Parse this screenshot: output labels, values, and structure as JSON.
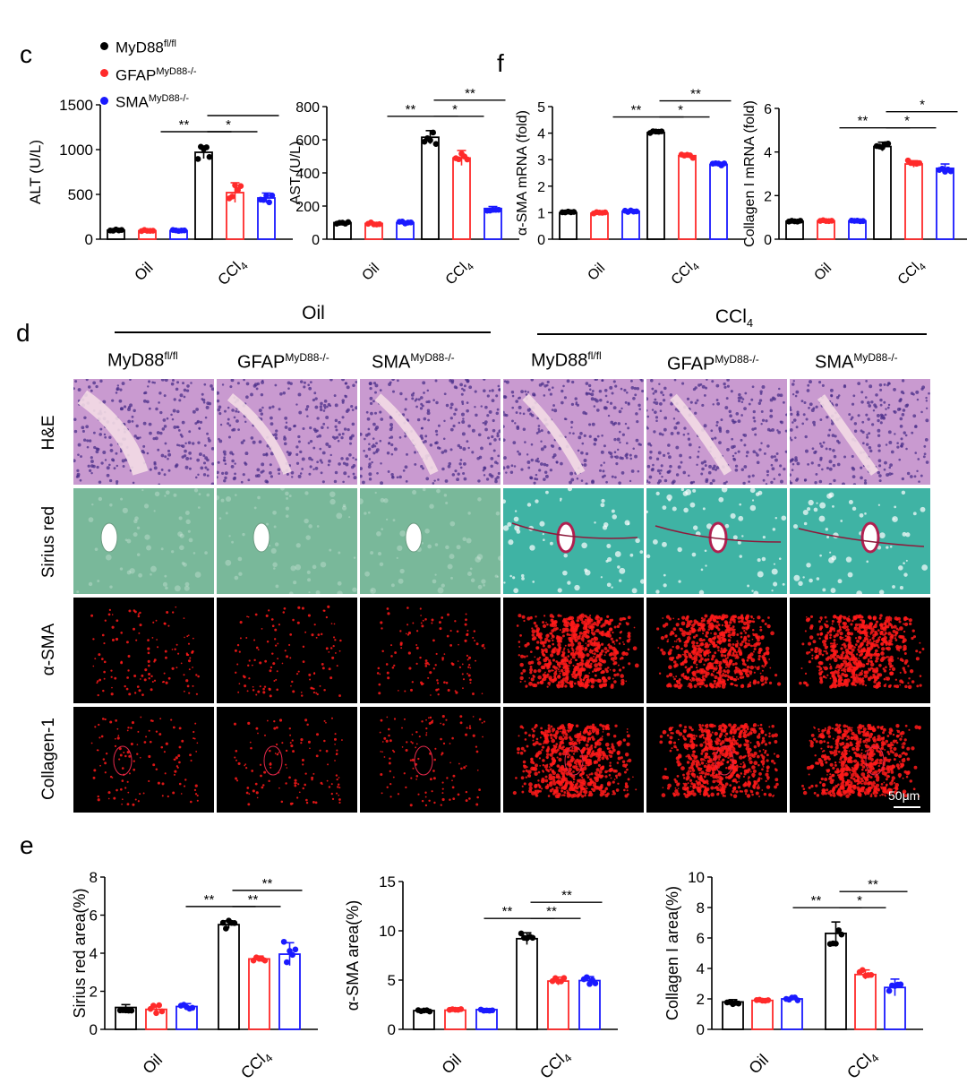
{
  "panels": {
    "c": "c",
    "d": "d",
    "e": "e",
    "f": "f"
  },
  "legend": [
    {
      "base": "MyD88",
      "sup": "fl/fl",
      "color": "#000000"
    },
    {
      "base": "GFAP",
      "sup": "MyD88-/-",
      "color": "#ff0000"
    },
    {
      "base": "SMA",
      "sup": "MyD88-/-",
      "color": "#0000ff"
    }
  ],
  "colors": {
    "wt": "#000000",
    "gfap": "#ff2a2a",
    "sma": "#1a1aff"
  },
  "treatments": {
    "oil": "Oil",
    "ccl4_base": "CCl",
    "ccl4_sub": "4"
  },
  "histology": {
    "group_headers": {
      "oil": "Oil",
      "ccl4_base": "CCl",
      "ccl4_sub": "4"
    },
    "columns": [
      {
        "base": "MyD88",
        "sup": "fl/fl"
      },
      {
        "base": "GFAP",
        "sup": "MyD88-/-"
      },
      {
        "base": "SMA",
        "sup": "MyD88-/-"
      },
      {
        "base": "MyD88",
        "sup": "fl/fl"
      },
      {
        "base": "GFAP",
        "sup": "MyD88-/-"
      },
      {
        "base": "SMA",
        "sup": "MyD88-/-"
      }
    ],
    "rows": [
      "H&E",
      "Sirius red",
      "α-SMA",
      "Collagen-1"
    ],
    "scale_bar": "50μm"
  },
  "chart_data": [
    {
      "id": "alt",
      "type": "bar",
      "ylabel": "ALT (U/L)",
      "ylim": [
        0,
        1500
      ],
      "yticks": [
        0,
        500,
        1000,
        1500
      ],
      "categories": [
        "Oil",
        "CCl4"
      ],
      "series": [
        {
          "group": "MyD88fl/fl",
          "values": [
            100,
            970
          ],
          "sem": [
            8,
            70
          ]
        },
        {
          "group": "GFAPMyD88-/-",
          "values": [
            95,
            520
          ],
          "sem": [
            8,
            110
          ]
        },
        {
          "group": "SMAMyD88-/-",
          "values": [
            95,
            460
          ],
          "sem": [
            8,
            55
          ]
        }
      ],
      "significance": [
        {
          "label": "**",
          "pair": [
            0,
            1
          ]
        },
        {
          "label": "*",
          "pair": [
            1,
            2
          ]
        },
        {
          "label": "",
          "pair": [
            0,
            2
          ]
        }
      ]
    },
    {
      "id": "ast",
      "type": "bar",
      "ylabel": "AST (U/L)",
      "ylim": [
        0,
        800
      ],
      "yticks": [
        0,
        200,
        400,
        600,
        800
      ],
      "categories": [
        "Oil",
        "CCl4"
      ],
      "series": [
        {
          "group": "MyD88fl/fl",
          "values": [
            100,
            615
          ],
          "sem": [
            6,
            40
          ]
        },
        {
          "group": "GFAPMyD88-/-",
          "values": [
            95,
            490
          ],
          "sem": [
            6,
            45
          ]
        },
        {
          "group": "SMAMyD88-/-",
          "values": [
            100,
            185
          ],
          "sem": [
            6,
            12
          ]
        }
      ],
      "significance": [
        {
          "label": "**",
          "pair": [
            0,
            1
          ]
        },
        {
          "label": "*",
          "pair": [
            1,
            2
          ]
        },
        {
          "label": "**",
          "pair": [
            0,
            2
          ]
        }
      ]
    },
    {
      "id": "asma_mrna",
      "type": "bar",
      "ylabel": "α-SMA mRNA (fold)",
      "ylim": [
        0,
        5
      ],
      "yticks": [
        0,
        1,
        2,
        3,
        4,
        5
      ],
      "categories": [
        "Oil",
        "CCl4"
      ],
      "series": [
        {
          "group": "MyD88fl/fl",
          "values": [
            1.0,
            4.02
          ],
          "sem": [
            0.04,
            0.05
          ]
        },
        {
          "group": "GFAPMyD88-/-",
          "values": [
            0.98,
            3.15
          ],
          "sem": [
            0.04,
            0.08
          ]
        },
        {
          "group": "SMAMyD88-/-",
          "values": [
            1.05,
            2.82
          ],
          "sem": [
            0.04,
            0.08
          ]
        }
      ],
      "significance": [
        {
          "label": "**",
          "pair": [
            0,
            1
          ]
        },
        {
          "label": "*",
          "pair": [
            1,
            2
          ]
        },
        {
          "label": "**",
          "pair": [
            0,
            2
          ]
        }
      ]
    },
    {
      "id": "col_mrna",
      "type": "bar",
      "ylabel": "Collagen I mRNA (fold)",
      "ylim": [
        0,
        6
      ],
      "yticks": [
        0,
        2,
        4,
        6
      ],
      "categories": [
        "Oil",
        "CCl4"
      ],
      "series": [
        {
          "group": "MyD88fl/fl",
          "values": [
            0.82,
            4.25
          ],
          "sem": [
            0.03,
            0.2
          ]
        },
        {
          "group": "GFAPMyD88-/-",
          "values": [
            0.84,
            3.45
          ],
          "sem": [
            0.03,
            0.15
          ]
        },
        {
          "group": "SMAMyD88-/-",
          "values": [
            0.84,
            3.25
          ],
          "sem": [
            0.03,
            0.2
          ]
        }
      ],
      "significance": [
        {
          "label": "**",
          "pair": [
            0,
            1
          ]
        },
        {
          "label": "*",
          "pair": [
            1,
            2
          ]
        },
        {
          "label": "*",
          "pair": [
            0,
            2
          ]
        }
      ]
    },
    {
      "id": "sirius_area",
      "type": "bar",
      "ylabel": "Sirius red area(%)",
      "ylim": [
        0,
        8
      ],
      "yticks": [
        0,
        2,
        4,
        6,
        8
      ],
      "categories": [
        "Oil",
        "CCl4"
      ],
      "series": [
        {
          "group": "MyD88fl/fl",
          "values": [
            1.15,
            5.5
          ],
          "sem": [
            0.15,
            0.2
          ]
        },
        {
          "group": "GFAPMyD88-/-",
          "values": [
            1.05,
            3.7
          ],
          "sem": [
            0.2,
            0.15
          ]
        },
        {
          "group": "SMAMyD88-/-",
          "values": [
            1.2,
            3.95
          ],
          "sem": [
            0.15,
            0.6
          ]
        }
      ],
      "significance": [
        {
          "label": "**",
          "pair": [
            0,
            1
          ]
        },
        {
          "label": "**",
          "pair": [
            1,
            2
          ]
        },
        {
          "label": "**",
          "pair": [
            0,
            2
          ]
        }
      ]
    },
    {
      "id": "asma_area",
      "type": "bar",
      "ylabel": "α-SMA area(%)",
      "ylim": [
        0,
        15
      ],
      "yticks": [
        0,
        5,
        10,
        15
      ],
      "categories": [
        "Oil",
        "CCl4"
      ],
      "series": [
        {
          "group": "MyD88fl/fl",
          "values": [
            1.9,
            9.2
          ],
          "sem": [
            0.1,
            0.6
          ]
        },
        {
          "group": "GFAPMyD88-/-",
          "values": [
            1.95,
            4.9
          ],
          "sem": [
            0.1,
            0.4
          ]
        },
        {
          "group": "SMAMyD88-/-",
          "values": [
            2.0,
            4.95
          ],
          "sem": [
            0.1,
            0.4
          ]
        }
      ],
      "significance": [
        {
          "label": "**",
          "pair": [
            0,
            1
          ]
        },
        {
          "label": "**",
          "pair": [
            1,
            2
          ]
        },
        {
          "label": "**",
          "pair": [
            0,
            2
          ]
        }
      ]
    },
    {
      "id": "col_area",
      "type": "bar",
      "ylabel": "Collagen I area(%)",
      "ylim": [
        0,
        10
      ],
      "yticks": [
        0,
        2,
        4,
        6,
        8,
        10
      ],
      "categories": [
        "Oil",
        "CCl4"
      ],
      "series": [
        {
          "group": "MyD88fl/fl",
          "values": [
            1.8,
            6.3
          ],
          "sem": [
            0.15,
            0.75
          ]
        },
        {
          "group": "GFAPMyD88-/-",
          "values": [
            1.9,
            3.6
          ],
          "sem": [
            0.05,
            0.3
          ]
        },
        {
          "group": "SMAMyD88-/-",
          "values": [
            2.0,
            2.75
          ],
          "sem": [
            0.1,
            0.55
          ]
        }
      ],
      "significance": [
        {
          "label": "**",
          "pair": [
            0,
            1
          ]
        },
        {
          "label": "*",
          "pair": [
            1,
            2
          ]
        },
        {
          "label": "**",
          "pair": [
            0,
            2
          ]
        }
      ]
    }
  ]
}
